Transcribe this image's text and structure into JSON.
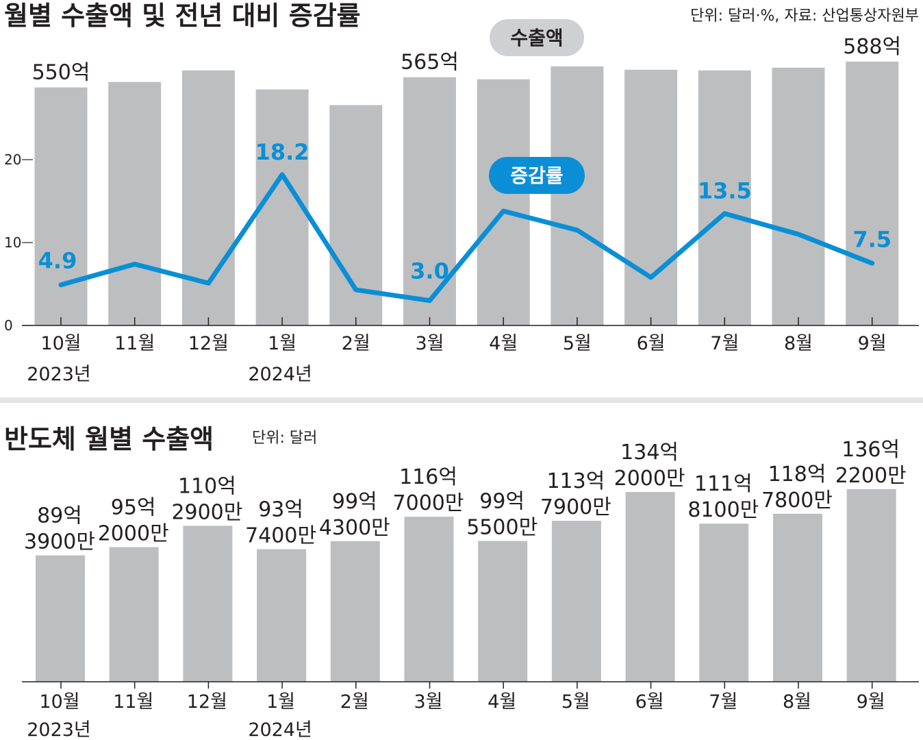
{
  "chart_data": [
    {
      "type": "bar+line",
      "title": "월별 수출액 및 전년 대비 증감률",
      "note": "단위: 달러·%, 자료: 산업통상자원부",
      "categories": [
        "10월",
        "11월",
        "12월",
        "1월",
        "2월",
        "3월",
        "4월",
        "5월",
        "6월",
        "7월",
        "8월",
        "9월"
      ],
      "year_labels": [
        "2023년",
        "",
        "",
        "2024년",
        "",
        "",
        "",
        "",
        "",
        "",
        "",
        ""
      ],
      "series": [
        {
          "name": "수출액",
          "unit": "억 달러",
          "values": [
            550,
            558,
            575,
            547,
            524,
            565,
            562,
            581,
            576,
            575,
            579,
            588
          ],
          "labels": [
            "550억",
            "",
            "",
            "",
            "",
            "565억",
            "",
            "",
            "",
            "",
            "",
            "588억"
          ]
        },
        {
          "name": "증감률",
          "unit": "%",
          "values": [
            4.9,
            7.4,
            5.1,
            18.2,
            4.3,
            3.0,
            13.8,
            11.5,
            5.8,
            13.5,
            11.0,
            7.5
          ],
          "labels": [
            "4.9",
            "",
            "",
            "18.2",
            "",
            "3.0",
            "",
            "",
            "",
            "13.5",
            "",
            "7.5"
          ]
        }
      ],
      "y_axis": {
        "ticks": [
          "0",
          "10",
          "20"
        ],
        "range": [
          0,
          25
        ]
      },
      "legend": [
        "수출액",
        "증감률"
      ]
    },
    {
      "type": "bar",
      "title": "반도체 월별 수출액",
      "note": "단위: 달러",
      "categories": [
        "10월",
        "11월",
        "12월",
        "1월",
        "2월",
        "3월",
        "4월",
        "5월",
        "6월",
        "7월",
        "8월",
        "9월"
      ],
      "year_labels": [
        "2023년",
        "",
        "",
        "2024년",
        "",
        "",
        "",
        "",
        "",
        "",
        "",
        ""
      ],
      "values": [
        89.39,
        95.2,
        110.29,
        93.74,
        99.43,
        116.7,
        99.55,
        113.79,
        134.2,
        111.81,
        118.78,
        136.22
      ],
      "labels_line1": [
        "89억",
        "95억",
        "110억",
        "93억",
        "99억",
        "116억",
        "99억",
        "113억",
        "134억",
        "111억",
        "118억",
        "136억"
      ],
      "labels_line2": [
        "3900만",
        "2000만",
        "2900만",
        "7400만",
        "4300만",
        "7000만",
        "5500만",
        "7900만",
        "2000만",
        "8100만",
        "7800만",
        "2200만"
      ]
    }
  ],
  "colors": {
    "bar": "#bdbec0",
    "line": "#0a8fd6",
    "text": "#231f20",
    "pill_grey": "#cfd0d2",
    "divider": "#e3e4e5"
  }
}
